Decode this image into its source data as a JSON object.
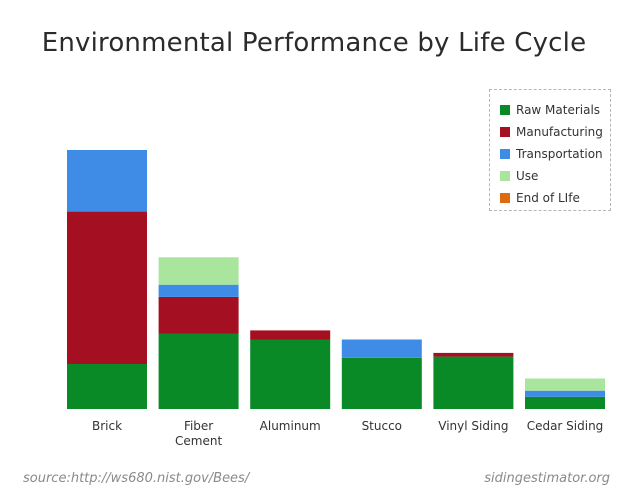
{
  "header": {
    "title": "Environmental Performance by Life Cycle"
  },
  "footer": {
    "source": "source:http://ws680.nist.gov/Bees/",
    "site": "sidingestimator.org"
  },
  "chart_data": {
    "type": "bar",
    "stacked": true,
    "title": "Environmental Performance by Life Cycle",
    "xlabel": "",
    "ylabel": "",
    "ylim": [
      0,
      0.085
    ],
    "grid": false,
    "legend_position": "top-right",
    "categories": [
      [
        "Brick"
      ],
      [
        "Fiber",
        "Cement"
      ],
      [
        "Aluminum"
      ],
      [
        "Stucco"
      ],
      [
        "Vinyl Siding"
      ],
      [
        "Cedar Siding"
      ]
    ],
    "series": [
      {
        "name": "Raw Materials",
        "color": "#0a8a27",
        "values": [
          0.0148,
          0.0248,
          0.0228,
          0.0168,
          0.0172,
          0.004
        ]
      },
      {
        "name": "Manufacturing",
        "color": "#a50f22",
        "values": [
          0.05,
          0.012,
          0.003,
          0,
          0.0012,
          0
        ]
      },
      {
        "name": "Transportation",
        "color": "#3e8ce6",
        "values": [
          0.0202,
          0.004,
          0,
          0.006,
          0,
          0.002
        ]
      },
      {
        "name": "Use",
        "color": "#a9e59c",
        "values": [
          0,
          0.009,
          0,
          0,
          0,
          0.004
        ]
      },
      {
        "name": "End of LIfe",
        "color": "#e06a12",
        "values": [
          0,
          0,
          0,
          0,
          0,
          0
        ]
      }
    ]
  }
}
